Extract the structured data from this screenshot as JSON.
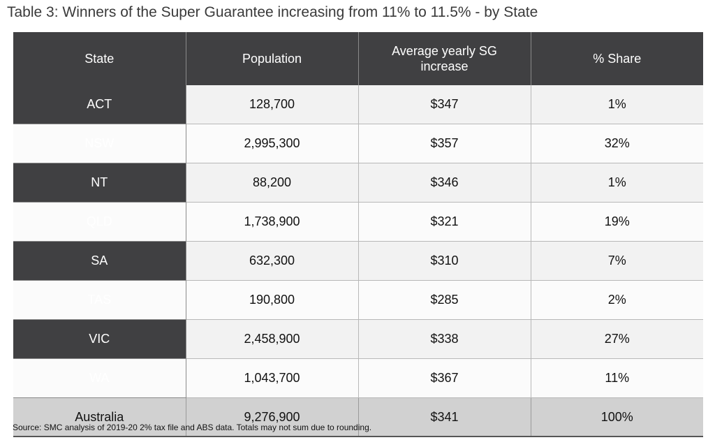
{
  "title": "Table 3: Winners of the Super Guarantee increasing from 11% to 11.5% - by State",
  "table": {
    "headers": [
      "State",
      "Population",
      "Average yearly SG increase",
      "% Share"
    ],
    "rows": [
      {
        "state": "ACT",
        "population": "128,700",
        "avg_sg_increase": "$347",
        "share": "1%"
      },
      {
        "state": "NSW",
        "population": "2,995,300",
        "avg_sg_increase": "$357",
        "share": "32%"
      },
      {
        "state": "NT",
        "population": "88,200",
        "avg_sg_increase": "$346",
        "share": "1%"
      },
      {
        "state": "QLD",
        "population": "1,738,900",
        "avg_sg_increase": "$321",
        "share": "19%"
      },
      {
        "state": "SA",
        "population": "632,300",
        "avg_sg_increase": "$310",
        "share": "7%"
      },
      {
        "state": "TAS",
        "population": "190,800",
        "avg_sg_increase": "$285",
        "share": "2%"
      },
      {
        "state": "VIC",
        "population": "2,458,900",
        "avg_sg_increase": "$338",
        "share": "27%"
      },
      {
        "state": "WA",
        "population": "1,043,700",
        "avg_sg_increase": "$367",
        "share": "11%"
      }
    ],
    "total": {
      "state": "Australia",
      "population": "9,276,900",
      "avg_sg_increase": "$341",
      "share": "100%"
    }
  },
  "source": "Source: SMC analysis of 2019-20 2% tax file and ABS data. Totals may not sum due to rounding."
}
